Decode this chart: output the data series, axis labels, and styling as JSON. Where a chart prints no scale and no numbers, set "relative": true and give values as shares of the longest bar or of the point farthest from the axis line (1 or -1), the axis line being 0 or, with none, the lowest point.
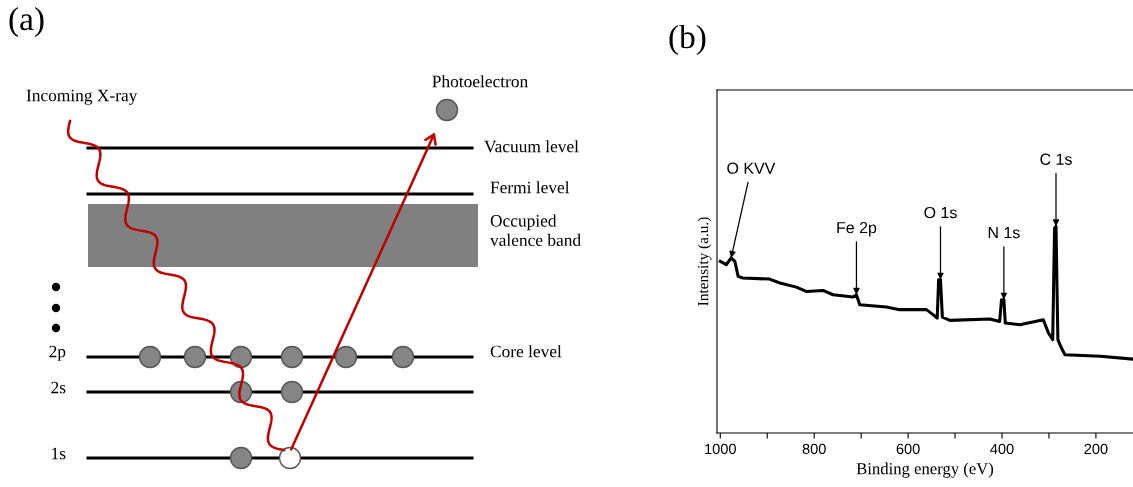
{
  "chart_data": [
    {
      "type": "other",
      "title": "(a)",
      "annotations": [
        "Incoming X-ray",
        "Photoelectron",
        "Vacuum level",
        "Fermi level",
        "Occupied\nvalence band",
        "Core level",
        "2p",
        "2s",
        "1s"
      ]
    },
    {
      "type": "line",
      "title": "(b)",
      "xlabel": "Binding energy (eV)",
      "ylabel": "Intensity (a.u.)",
      "relative": true,
      "tick_labels": "x",
      "xlim": [
        1007,
        121
      ],
      "xticks": [
        1000,
        {
          "value": 900,
          "label": null
        },
        800,
        {
          "value": 700,
          "label": null
        },
        600,
        {
          "value": 500,
          "label": null
        },
        400,
        {
          "value": 300,
          "label": null
        },
        200
      ],
      "x": [
        1000,
        987,
        977,
        969,
        962,
        952,
        895,
        873,
        838,
        817,
        781,
        760,
        717,
        710,
        703,
        646,
        618,
        561,
        547,
        538,
        535,
        531,
        527,
        511,
        426,
        405,
        401,
        396,
        393,
        362,
        312,
        301,
        292,
        288,
        285,
        281,
        275,
        266,
        191,
        123
      ],
      "series": [
        {
          "color": "#000000",
          "values": [
            0.831,
            0.815,
            0.847,
            0.831,
            0.758,
            0.75,
            0.745,
            0.726,
            0.706,
            0.685,
            0.69,
            0.669,
            0.658,
            0.669,
            0.621,
            0.61,
            0.597,
            0.597,
            0.573,
            0.556,
            0.742,
            0.742,
            0.561,
            0.545,
            0.552,
            0.54,
            0.645,
            0.645,
            0.532,
            0.524,
            0.548,
            0.484,
            0.452,
            0.992,
            1.0,
            0.452,
            0.419,
            0.379,
            0.371,
            0.358
          ]
        }
      ],
      "annotations": [
        {
          "text": "O KVV",
          "x": 977,
          "y": 0.847
        },
        {
          "text": "Fe 2p",
          "x": 710,
          "y": 0.669
        },
        {
          "text": "O 1s",
          "x": 531,
          "y": 0.742
        },
        {
          "text": "N 1s",
          "x": 396,
          "y": 0.645
        },
        {
          "text": "C 1s",
          "x": 285,
          "y": 1.0
        }
      ],
      "grid": false,
      "legend": false
    }
  ]
}
